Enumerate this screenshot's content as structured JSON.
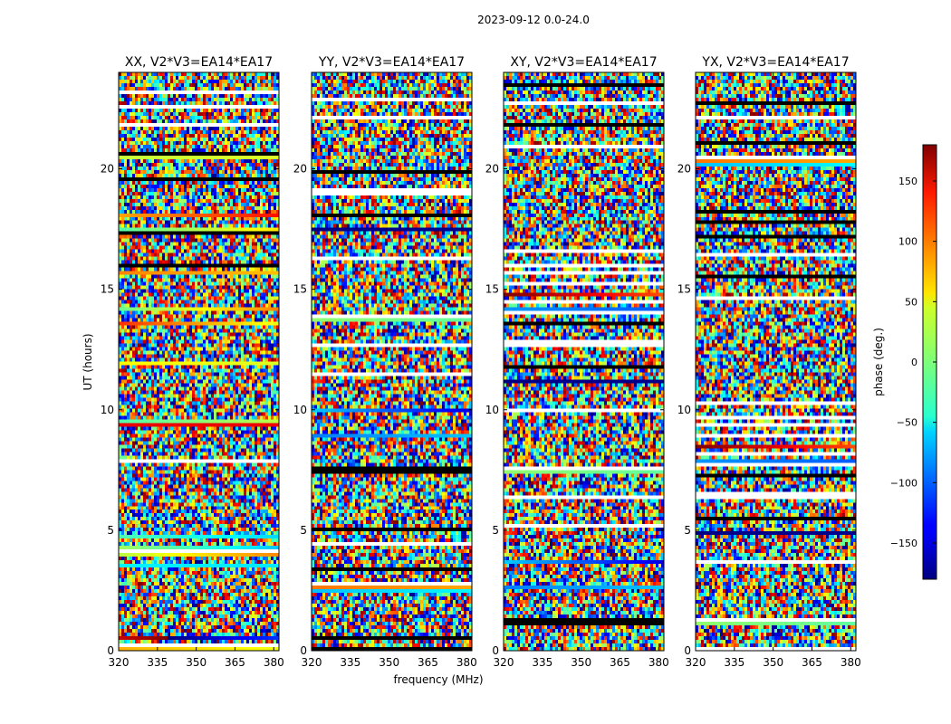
{
  "figure": {
    "suptitle": "2023-09-12 0.0-24.0",
    "xlabel": "frequency (MHz)",
    "ylabel": "UT (hours)",
    "colorbar_label": "phase (deg.)"
  },
  "chart_data": {
    "type": "heatmap",
    "colormap": "jet",
    "panels": [
      {
        "title": "XX, V2*V3=EA14*EA17"
      },
      {
        "title": "YY, V2*V3=EA14*EA17"
      },
      {
        "title": "XY, V2*V3=EA14*EA17"
      },
      {
        "title": "YX, V2*V3=EA14*EA17"
      }
    ],
    "x_ticks": [
      "320",
      "335",
      "350",
      "365",
      "380"
    ],
    "x_tick_values": [
      320,
      335,
      350,
      365,
      380
    ],
    "xlim": [
      320,
      382
    ],
    "y_ticks": [
      "0",
      "5",
      "10",
      "15",
      "20"
    ],
    "y_tick_values": [
      0,
      5,
      10,
      15,
      20
    ],
    "ylim": [
      0,
      24
    ],
    "colorbar": {
      "ticks": [
        "150",
        "100",
        "50",
        "0",
        "−50",
        "−100",
        "−150"
      ],
      "tick_values": [
        150,
        100,
        50,
        0,
        -50,
        -100,
        -150
      ],
      "range": [
        -180,
        180
      ]
    }
  }
}
